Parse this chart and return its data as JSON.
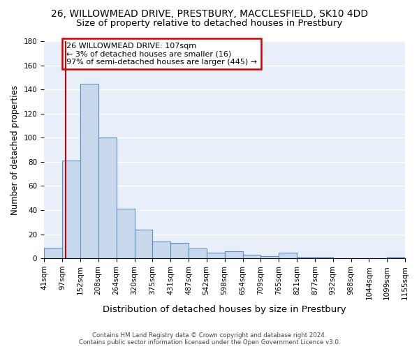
{
  "title": "26, WILLOWMEAD DRIVE, PRESTBURY, MACCLESFIELD, SK10 4DD",
  "subtitle": "Size of property relative to detached houses in Prestbury",
  "xlabel": "Distribution of detached houses by size in Prestbury",
  "ylabel": "Number of detached properties",
  "bin_edges": [
    41,
    97,
    152,
    208,
    264,
    320,
    375,
    431,
    487,
    542,
    598,
    654,
    709,
    765,
    821,
    877,
    932,
    988,
    1044,
    1099,
    1155
  ],
  "bar_heights": [
    9,
    81,
    145,
    100,
    41,
    24,
    14,
    13,
    8,
    5,
    6,
    3,
    2,
    5,
    1,
    1,
    0,
    0,
    0,
    1
  ],
  "bar_color": "#c8d9ed",
  "bar_edge_color": "#6090c0",
  "vline_x": 107,
  "vline_color": "#cc0000",
  "annotation_line1": "26 WILLOWMEAD DRIVE: 107sqm",
  "annotation_line2": "← 3% of detached houses are smaller (16)",
  "annotation_line3": "97% of semi-detached houses are larger (445) →",
  "annotation_box_color": "#cc0000",
  "ylim": [
    0,
    180
  ],
  "yticks": [
    0,
    20,
    40,
    60,
    80,
    100,
    120,
    140,
    160,
    180
  ],
  "background_color": "#e8eff8",
  "grid_color": "#ffffff",
  "footer": "Contains HM Land Registry data © Crown copyright and database right 2024.\nContains public sector information licensed under the Open Government Licence v3.0.",
  "title_fontsize": 10,
  "subtitle_fontsize": 9.5,
  "xlabel_fontsize": 9.5,
  "ylabel_fontsize": 8.5,
  "tick_fontsize": 7.5,
  "annotation_fontsize": 8
}
